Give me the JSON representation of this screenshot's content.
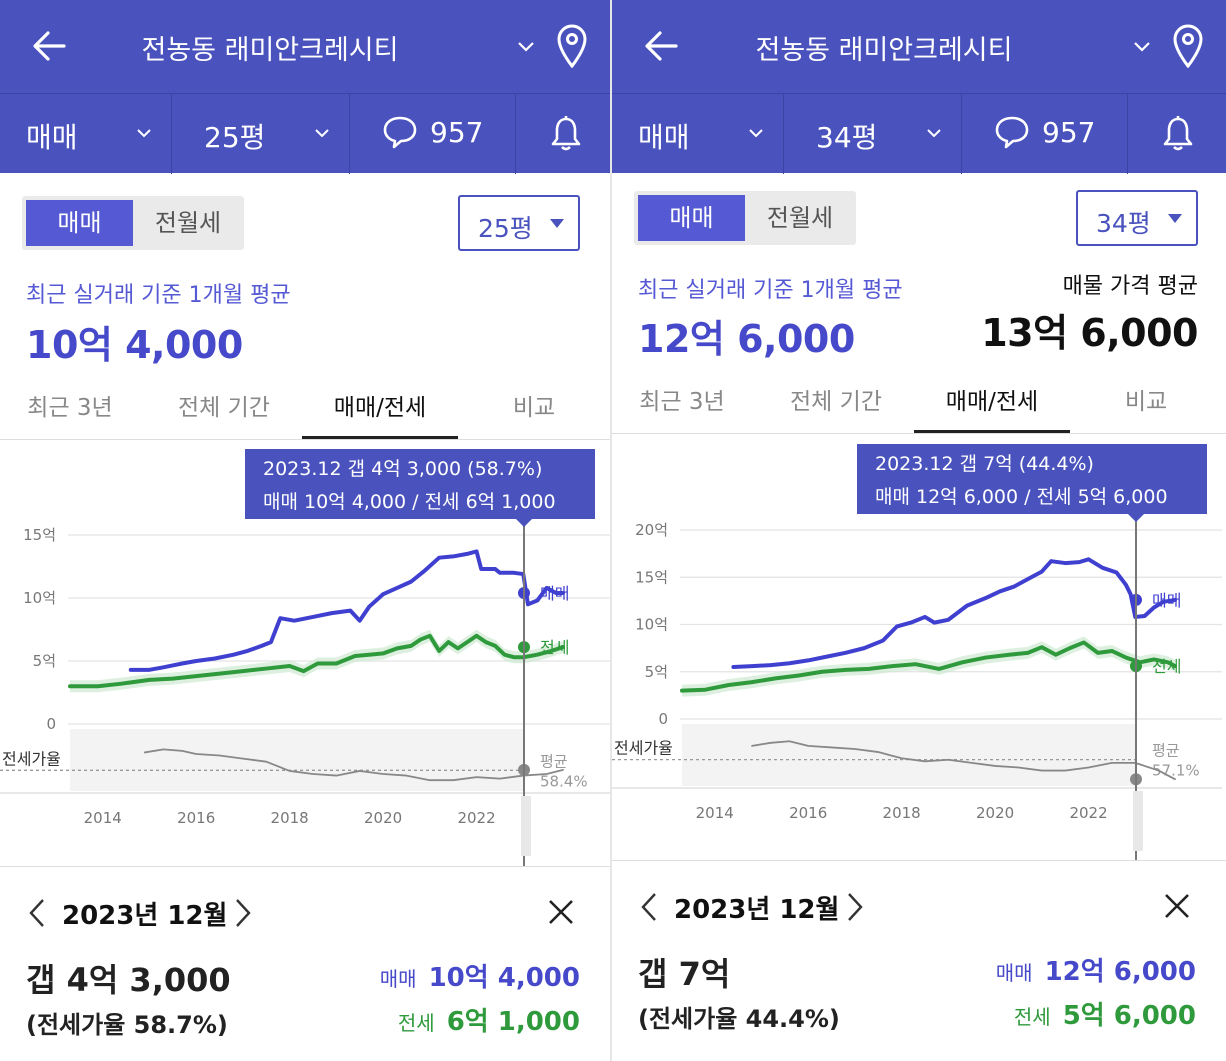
{
  "panels": [
    {
      "header": {
        "title": "전농동 래미안크레시티",
        "deal_type": "매매",
        "size": "25평",
        "comments": "957"
      },
      "segment": {
        "active": "매매",
        "inactive": "전월세"
      },
      "size_select": "25평",
      "summary": {
        "caption": "최근 실거래 기준 1개월 평균",
        "price": "10억 4,000",
        "listing_caption": "",
        "listing_price": ""
      },
      "tabs": [
        "최근 3년",
        "전체 기간",
        "매매/전세",
        "비교"
      ],
      "active_tab": 2,
      "bottom": {
        "date": "2023년 12월",
        "gap": "갭 4억 3,000",
        "ratio": "(전세가율 58.7%)",
        "sale_label": "매매",
        "sale_value": "10억 4,000",
        "jeonse_label": "전세",
        "jeonse_value": "6억 1,000"
      },
      "chart_data": {
        "type": "line",
        "tooltip": [
          "2023.12  갭 4억 3,000 (58.7%)",
          "매매 10억 4,000 / 전세 6억 1,000"
        ],
        "y_ticks": [
          "15억",
          "10억",
          "5억",
          "0"
        ],
        "y_tick_values": [
          15,
          10,
          5,
          0
        ],
        "ylim": [
          0,
          15
        ],
        "x_ticks": [
          "2014",
          "2016",
          "2018",
          "2020",
          "2022"
        ],
        "x_tick_values": [
          2014,
          2016,
          2018,
          2020,
          2022
        ],
        "xlim": [
          2013.3,
          2024.0
        ],
        "ratio_label": "전세가율",
        "ratio_avg_label": "평균",
        "ratio_avg_value": "58.4%",
        "ratio_avg": 58.4,
        "ratio_range": [
          45,
          80
        ],
        "series": [
          {
            "name": "매매",
            "color": "#4040d0",
            "points": [
              [
                2014.6,
                4.3
              ],
              [
                2015.0,
                4.3
              ],
              [
                2015.3,
                4.5
              ],
              [
                2015.7,
                4.8
              ],
              [
                2016.0,
                5.0
              ],
              [
                2016.4,
                5.2
              ],
              [
                2016.8,
                5.5
              ],
              [
                2017.1,
                5.8
              ],
              [
                2017.4,
                6.2
              ],
              [
                2017.6,
                6.5
              ],
              [
                2017.8,
                8.4
              ],
              [
                2018.1,
                8.2
              ],
              [
                2018.5,
                8.5
              ],
              [
                2018.9,
                8.8
              ],
              [
                2019.3,
                9.0
              ],
              [
                2019.5,
                8.2
              ],
              [
                2019.7,
                9.3
              ],
              [
                2020.0,
                10.3
              ],
              [
                2020.3,
                10.8
              ],
              [
                2020.6,
                11.3
              ],
              [
                2020.9,
                12.2
              ],
              [
                2021.2,
                13.2
              ],
              [
                2021.5,
                13.3
              ],
              [
                2021.8,
                13.5
              ],
              [
                2022.0,
                13.7
              ],
              [
                2022.1,
                12.3
              ],
              [
                2022.4,
                12.3
              ],
              [
                2022.5,
                12.0
              ],
              [
                2022.8,
                12.0
              ],
              [
                2023.0,
                11.9
              ],
              [
                2023.1,
                9.5
              ],
              [
                2023.3,
                9.8
              ],
              [
                2023.5,
                10.8
              ],
              [
                2023.7,
                10.4
              ],
              [
                2023.85,
                10.4
              ]
            ]
          },
          {
            "name": "전세",
            "color": "#2f9a3c",
            "points": [
              [
                2013.3,
                3.0
              ],
              [
                2013.9,
                3.0
              ],
              [
                2014.4,
                3.2
              ],
              [
                2015.0,
                3.5
              ],
              [
                2015.5,
                3.6
              ],
              [
                2016.0,
                3.8
              ],
              [
                2016.5,
                4.0
              ],
              [
                2017.0,
                4.2
              ],
              [
                2017.5,
                4.4
              ],
              [
                2018.0,
                4.6
              ],
              [
                2018.3,
                4.2
              ],
              [
                2018.6,
                4.8
              ],
              [
                2019.0,
                4.8
              ],
              [
                2019.4,
                5.4
              ],
              [
                2019.7,
                5.5
              ],
              [
                2020.0,
                5.6
              ],
              [
                2020.3,
                6.0
              ],
              [
                2020.6,
                6.2
              ],
              [
                2020.8,
                6.7
              ],
              [
                2021.0,
                7.0
              ],
              [
                2021.2,
                5.8
              ],
              [
                2021.4,
                6.5
              ],
              [
                2021.6,
                6.0
              ],
              [
                2021.8,
                6.5
              ],
              [
                2022.0,
                7.0
              ],
              [
                2022.2,
                6.5
              ],
              [
                2022.4,
                6.2
              ],
              [
                2022.6,
                5.5
              ],
              [
                2022.8,
                5.3
              ],
              [
                2023.0,
                5.3
              ],
              [
                2023.3,
                5.5
              ],
              [
                2023.6,
                5.8
              ],
              [
                2023.85,
                6.1
              ]
            ]
          },
          {
            "name": "전세가율",
            "color": "#888888",
            "points": [
              [
                2014.9,
                70
              ],
              [
                2015.3,
                72
              ],
              [
                2015.7,
                71
              ],
              [
                2016.0,
                69
              ],
              [
                2016.5,
                68
              ],
              [
                2017.0,
                66
              ],
              [
                2017.5,
                64
              ],
              [
                2018.0,
                58
              ],
              [
                2018.5,
                56
              ],
              [
                2019.0,
                55
              ],
              [
                2019.5,
                58
              ],
              [
                2020.0,
                56
              ],
              [
                2020.5,
                55
              ],
              [
                2021.0,
                52
              ],
              [
                2021.5,
                52
              ],
              [
                2022.0,
                54
              ],
              [
                2022.5,
                53
              ],
              [
                2023.0,
                55
              ],
              [
                2023.5,
                56
              ],
              [
                2023.85,
                58.7
              ]
            ]
          }
        ]
      }
    },
    {
      "header": {
        "title": "전농동 래미안크레시티",
        "deal_type": "매매",
        "size": "34평",
        "comments": "957"
      },
      "segment": {
        "active": "매매",
        "inactive": "전월세"
      },
      "size_select": "34평",
      "summary": {
        "caption": "최근 실거래 기준 1개월 평균",
        "price": "12억 6,000",
        "listing_caption": "매물 가격 평균",
        "listing_price": "13억 6,000"
      },
      "tabs": [
        "최근 3년",
        "전체 기간",
        "매매/전세",
        "비교"
      ],
      "active_tab": 2,
      "bottom": {
        "date": "2023년 12월",
        "gap": "갭 7억",
        "ratio": "(전세가율 44.4%)",
        "sale_label": "매매",
        "sale_value": "12억 6,000",
        "jeonse_label": "전세",
        "jeonse_value": "5억 6,000"
      },
      "chart_data": {
        "type": "line",
        "tooltip": [
          "2023.12  갭 7억 (44.4%)",
          "매매 12억 6,000 / 전세 5억 6,000"
        ],
        "y_ticks": [
          "20억",
          "15억",
          "10억",
          "5억",
          "0"
        ],
        "y_tick_values": [
          20,
          15,
          10,
          5,
          0
        ],
        "ylim": [
          0,
          20
        ],
        "x_ticks": [
          "2014",
          "2016",
          "2018",
          "2020",
          "2022"
        ],
        "x_tick_values": [
          2014,
          2016,
          2018,
          2020,
          2022
        ],
        "xlim": [
          2013.3,
          2024.0
        ],
        "ratio_label": "전세가율",
        "ratio_avg_label": "평균",
        "ratio_avg_value": "57.1%",
        "ratio_avg": 57.1,
        "ratio_range": [
          40,
          75
        ],
        "series": [
          {
            "name": "매매",
            "color": "#4040d0",
            "points": [
              [
                2014.4,
                5.5
              ],
              [
                2014.8,
                5.6
              ],
              [
                2015.2,
                5.7
              ],
              [
                2015.6,
                5.9
              ],
              [
                2016.0,
                6.2
              ],
              [
                2016.4,
                6.6
              ],
              [
                2016.8,
                7.0
              ],
              [
                2017.2,
                7.5
              ],
              [
                2017.6,
                8.3
              ],
              [
                2017.9,
                9.8
              ],
              [
                2018.2,
                10.2
              ],
              [
                2018.5,
                10.8
              ],
              [
                2018.7,
                10.2
              ],
              [
                2019.0,
                10.5
              ],
              [
                2019.4,
                12.0
              ],
              [
                2019.8,
                12.8
              ],
              [
                2020.1,
                13.5
              ],
              [
                2020.4,
                14.0
              ],
              [
                2020.7,
                14.8
              ],
              [
                2021.0,
                15.6
              ],
              [
                2021.2,
                16.7
              ],
              [
                2021.5,
                16.5
              ],
              [
                2021.8,
                16.6
              ],
              [
                2022.0,
                16.9
              ],
              [
                2022.3,
                16.0
              ],
              [
                2022.6,
                15.5
              ],
              [
                2022.8,
                14.2
              ],
              [
                2022.9,
                13.2
              ],
              [
                2023.0,
                10.8
              ],
              [
                2023.2,
                10.9
              ],
              [
                2023.4,
                11.8
              ],
              [
                2023.6,
                12.4
              ],
              [
                2023.85,
                12.6
              ]
            ]
          },
          {
            "name": "전세",
            "color": "#2f9a3c",
            "points": [
              [
                2013.3,
                3.0
              ],
              [
                2013.8,
                3.1
              ],
              [
                2014.3,
                3.6
              ],
              [
                2014.8,
                3.9
              ],
              [
                2015.3,
                4.3
              ],
              [
                2015.8,
                4.6
              ],
              [
                2016.3,
                5.0
              ],
              [
                2016.8,
                5.2
              ],
              [
                2017.3,
                5.3
              ],
              [
                2017.8,
                5.6
              ],
              [
                2018.3,
                5.8
              ],
              [
                2018.8,
                5.3
              ],
              [
                2019.3,
                6.0
              ],
              [
                2019.8,
                6.5
              ],
              [
                2020.3,
                6.8
              ],
              [
                2020.7,
                7.0
              ],
              [
                2021.0,
                7.6
              ],
              [
                2021.3,
                6.8
              ],
              [
                2021.6,
                7.5
              ],
              [
                2021.9,
                8.1
              ],
              [
                2022.2,
                7.0
              ],
              [
                2022.5,
                7.2
              ],
              [
                2022.8,
                6.5
              ],
              [
                2023.1,
                6.0
              ],
              [
                2023.4,
                6.3
              ],
              [
                2023.7,
                6.0
              ],
              [
                2023.85,
                5.6
              ]
            ]
          },
          {
            "name": "전세가율",
            "color": "#888888",
            "points": [
              [
                2014.8,
                66
              ],
              [
                2015.2,
                68
              ],
              [
                2015.6,
                69
              ],
              [
                2016.0,
                66
              ],
              [
                2016.5,
                65
              ],
              [
                2017.0,
                64
              ],
              [
                2017.5,
                62
              ],
              [
                2018.0,
                58
              ],
              [
                2018.5,
                56
              ],
              [
                2019.0,
                57
              ],
              [
                2019.5,
                55
              ],
              [
                2020.0,
                53
              ],
              [
                2020.5,
                52
              ],
              [
                2021.0,
                50
              ],
              [
                2021.5,
                50
              ],
              [
                2022.0,
                52
              ],
              [
                2022.5,
                55
              ],
              [
                2023.0,
                55
              ],
              [
                2023.5,
                50
              ],
              [
                2023.85,
                44.4
              ]
            ]
          }
        ]
      }
    }
  ]
}
